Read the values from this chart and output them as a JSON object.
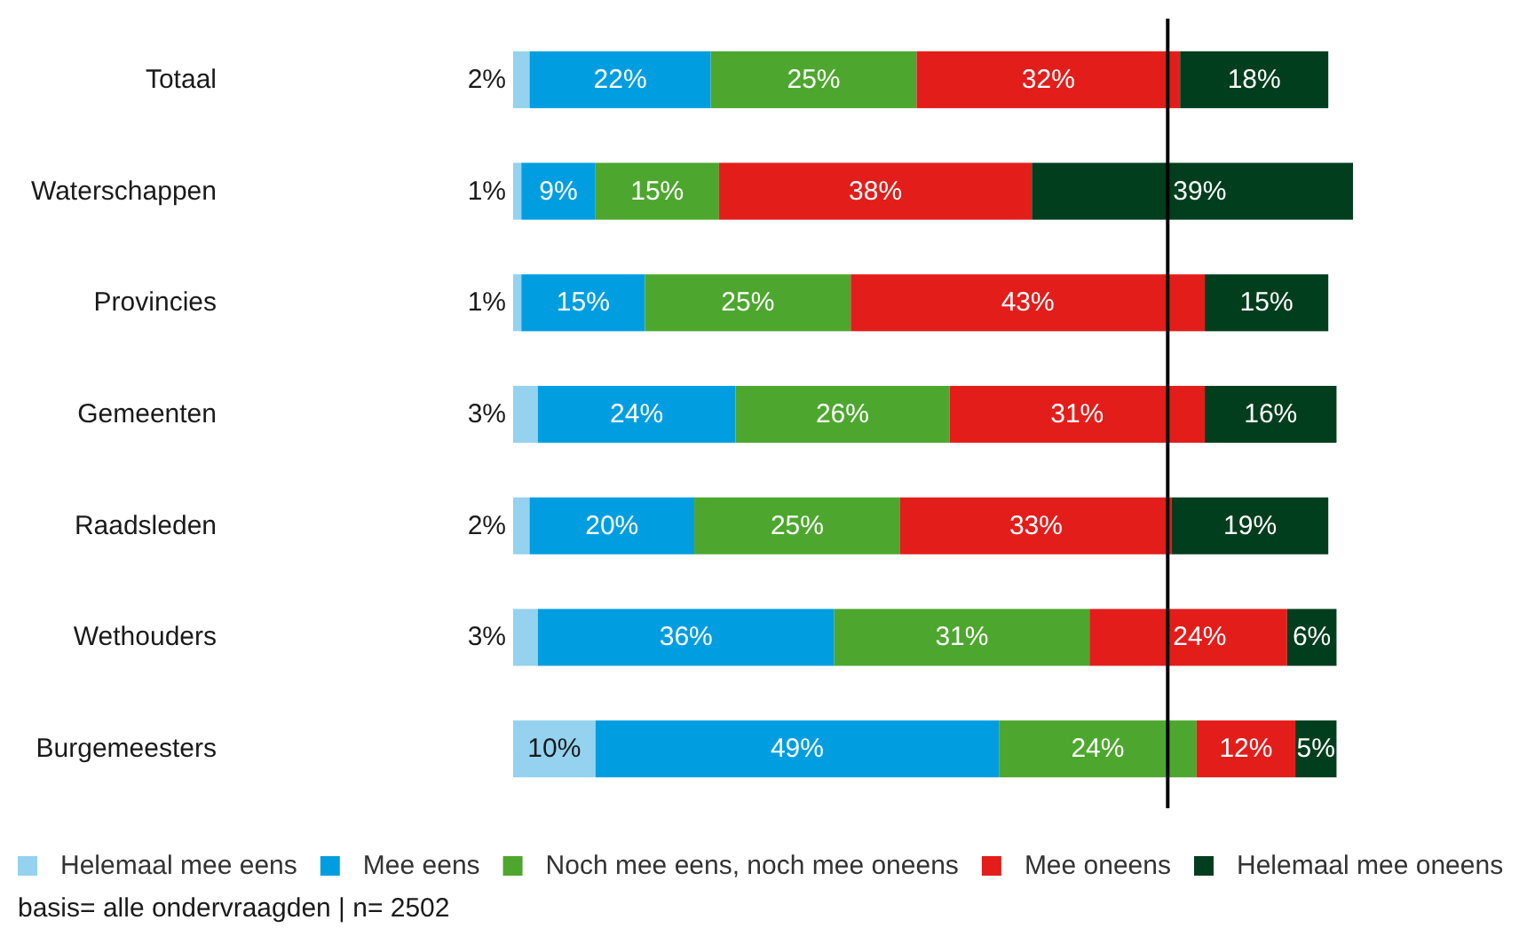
{
  "chart_data": {
    "type": "bar",
    "orientation": "horizontal",
    "stacked": true,
    "categories": [
      "Totaal",
      "Waterschappen",
      "Provincies",
      "Gemeenten",
      "Raadsleden",
      "Wethouders",
      "Burgemeesters"
    ],
    "series": [
      {
        "name": "Helemaal mee eens",
        "color": "#94d2ef",
        "values": [
          2,
          1,
          1,
          3,
          2,
          3,
          10
        ],
        "value_labels": [
          "2%",
          "1%",
          "1%",
          "3%",
          "2%",
          "3%",
          "10%"
        ]
      },
      {
        "name": "Mee eens",
        "color": "#009ee0",
        "values": [
          22,
          9,
          15,
          24,
          20,
          36,
          49
        ],
        "value_labels": [
          "22%",
          "9%",
          "15%",
          "24%",
          "20%",
          "36%",
          "49%"
        ]
      },
      {
        "name": "Noch mee eens, noch mee oneens",
        "color": "#4da72e",
        "values": [
          25,
          15,
          25,
          26,
          25,
          31,
          24
        ],
        "value_labels": [
          "25%",
          "15%",
          "25%",
          "26%",
          "25%",
          "31%",
          "24%"
        ]
      },
      {
        "name": "Mee oneens",
        "color": "#e31d1a",
        "values": [
          32,
          38,
          43,
          31,
          33,
          24,
          12
        ],
        "value_labels": [
          "32%",
          "38%",
          "43%",
          "31%",
          "33%",
          "24%",
          "12%"
        ]
      },
      {
        "name": "Helemaal mee oneens",
        "color": "#003e1d",
        "values": [
          18,
          39,
          15,
          16,
          19,
          6,
          5
        ],
        "value_labels": [
          "18%",
          "39%",
          "15%",
          "16%",
          "19%",
          "6%",
          "5%"
        ]
      }
    ],
    "ref_lines": [
      {
        "axis": "x",
        "value": 79.5,
        "color": "#000000"
      }
    ],
    "legend": "bottom",
    "annotations": [
      "basis= alle ondervraagden | n= 2502"
    ]
  }
}
